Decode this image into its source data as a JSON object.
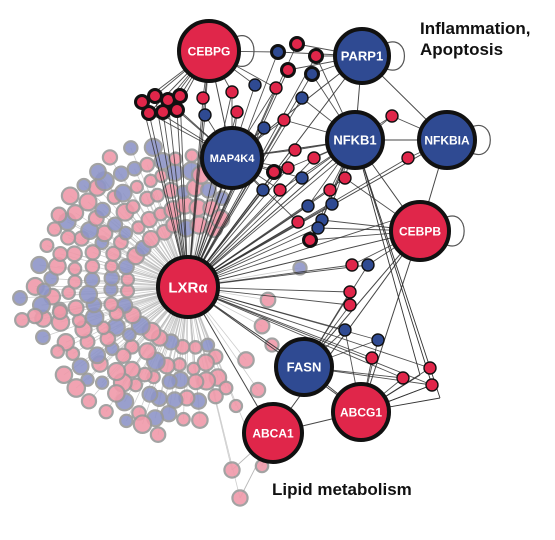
{
  "colors": {
    "red": "#e0264a",
    "blue": "#2f4a92",
    "faded_red": "#f09aaa",
    "faded_blue": "#8e95c8",
    "faded_ring": "#9a9a9a",
    "edge": "#333333",
    "edge_faded": "#b8b8b8"
  },
  "annotations": {
    "inflammation_line1": "Inflammation,",
    "inflammation_line2": "Apoptosis",
    "lipid": "Lipid metabolism"
  },
  "hubs": [
    {
      "id": "lxra",
      "label": "LXRα",
      "color": "red"
    },
    {
      "id": "cebpg",
      "label": "CEBPG",
      "color": "red"
    },
    {
      "id": "parp1",
      "label": "PARP1",
      "color": "blue"
    },
    {
      "id": "nfkb1",
      "label": "NFKB1",
      "color": "blue"
    },
    {
      "id": "nfkbia",
      "label": "NFKBIA",
      "color": "blue"
    },
    {
      "id": "map4k4",
      "label": "MAP4K4",
      "color": "blue"
    },
    {
      "id": "cebpb",
      "label": "CEBPB",
      "color": "red"
    },
    {
      "id": "fasn",
      "label": "FASN",
      "color": "blue"
    },
    {
      "id": "abcg1",
      "label": "ABCG1",
      "color": "red"
    },
    {
      "id": "abca1",
      "label": "ABCA1",
      "color": "red"
    }
  ]
}
